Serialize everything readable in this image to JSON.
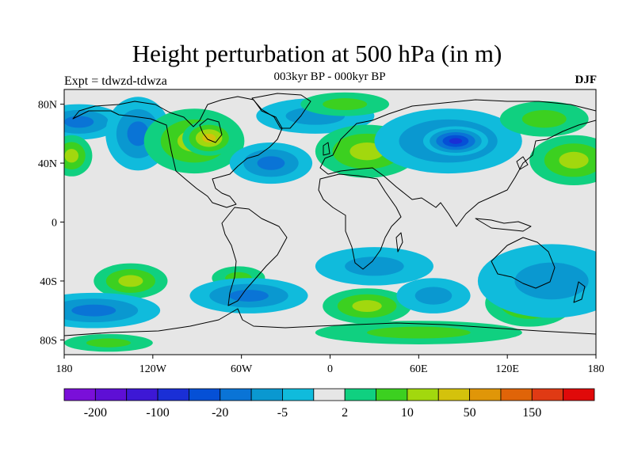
{
  "title": "Height perturbation at 500 hPa (in m)",
  "subtitle": "003kyr BP - 000kyr BP",
  "left_string": "Expt = tdwzd-tdwza",
  "right_string": "DJF",
  "background_color": "#e6e6e6",
  "lat_ticks": [
    {
      "lat": 80,
      "label": "80N"
    },
    {
      "lat": 40,
      "label": "40N"
    },
    {
      "lat": 0,
      "label": "0"
    },
    {
      "lat": -40,
      "label": "40S"
    },
    {
      "lat": -80,
      "label": "80S"
    }
  ],
  "lon_ticks": [
    {
      "lon": -180,
      "label": "180"
    },
    {
      "lon": -120,
      "label": "120W"
    },
    {
      "lon": -60,
      "label": "60W"
    },
    {
      "lon": 0,
      "label": "0"
    },
    {
      "lon": 60,
      "label": "60E"
    },
    {
      "lon": 120,
      "label": "120E"
    },
    {
      "lon": 180,
      "label": "180"
    }
  ],
  "colorbar": {
    "colors": [
      "#7a0fd9",
      "#5e0fd5",
      "#3d18d5",
      "#1a2fd6",
      "#0550d6",
      "#0a74d6",
      "#0a98d0",
      "#10bbdc",
      "#e6e6e6",
      "#10d080",
      "#3cd020",
      "#a2d80e",
      "#d4c20c",
      "#e09608",
      "#e06408",
      "#e03a14",
      "#e00a0a"
    ],
    "tick_labels": [
      {
        "index": 1,
        "label": "-200"
      },
      {
        "index": 3,
        "label": "-100"
      },
      {
        "index": 5,
        "label": "-20"
      },
      {
        "index": 7,
        "label": "-5"
      },
      {
        "index": 9,
        "label": "2"
      },
      {
        "index": 11,
        "label": "10"
      },
      {
        "index": 13,
        "label": "50"
      },
      {
        "index": 15,
        "label": "150"
      }
    ]
  },
  "anomaly_centers": [
    {
      "lon": -170,
      "lat": 68,
      "rx": 30,
      "ry": 12,
      "level": -3
    },
    {
      "lon": -130,
      "lat": 60,
      "rx": 22,
      "ry": 25,
      "level": -3
    },
    {
      "lon": -175,
      "lat": 45,
      "rx": 14,
      "ry": 14,
      "level": 3
    },
    {
      "lon": -92,
      "lat": 55,
      "rx": 34,
      "ry": 22,
      "level": 3
    },
    {
      "lon": -82,
      "lat": 57,
      "rx": 18,
      "ry": 12,
      "level": 4
    },
    {
      "lon": -40,
      "lat": 40,
      "rx": 28,
      "ry": 14,
      "level": -3
    },
    {
      "lon": -10,
      "lat": 72,
      "rx": 40,
      "ry": 12,
      "level": -2
    },
    {
      "lon": 25,
      "lat": 48,
      "rx": 35,
      "ry": 18,
      "level": 3
    },
    {
      "lon": 10,
      "lat": 80,
      "rx": 30,
      "ry": 8,
      "level": 2
    },
    {
      "lon": 80,
      "lat": 55,
      "rx": 50,
      "ry": 22,
      "level": -3
    },
    {
      "lon": 85,
      "lat": 55,
      "rx": 22,
      "ry": 10,
      "level": -5
    },
    {
      "lon": 165,
      "lat": 42,
      "rx": 30,
      "ry": 17,
      "level": 3
    },
    {
      "lon": 145,
      "lat": 70,
      "rx": 30,
      "ry": 12,
      "level": 2
    },
    {
      "lon": -135,
      "lat": -40,
      "rx": 25,
      "ry": 12,
      "level": 3
    },
    {
      "lon": -160,
      "lat": -60,
      "rx": 45,
      "ry": 12,
      "level": -3
    },
    {
      "lon": -62,
      "lat": -38,
      "rx": 18,
      "ry": 8,
      "level": 2
    },
    {
      "lon": -55,
      "lat": -50,
      "rx": 40,
      "ry": 12,
      "level": -3
    },
    {
      "lon": 30,
      "lat": -30,
      "rx": 40,
      "ry": 13,
      "level": -2
    },
    {
      "lon": 25,
      "lat": -57,
      "rx": 30,
      "ry": 12,
      "level": 3
    },
    {
      "lon": 70,
      "lat": -50,
      "rx": 25,
      "ry": 12,
      "level": -2
    },
    {
      "lon": 135,
      "lat": -55,
      "rx": 30,
      "ry": 16,
      "level": 3
    },
    {
      "lon": 150,
      "lat": -40,
      "rx": 50,
      "ry": 25,
      "level": -2
    },
    {
      "lon": 60,
      "lat": -75,
      "rx": 70,
      "ry": 8,
      "level": 2
    },
    {
      "lon": -150,
      "lat": -82,
      "rx": 30,
      "ry": 6,
      "level": 2
    }
  ]
}
